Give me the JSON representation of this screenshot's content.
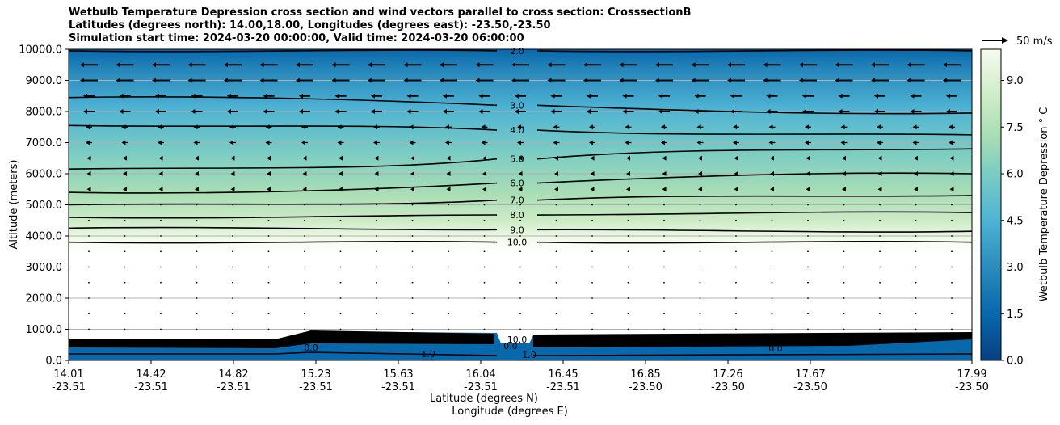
{
  "title_lines": [
    "Wetbulb Temperature Depression cross section and wind vectors parallel to cross section: CrosssectionB",
    "Latitudes (degrees north): 14.00,18.00, Longitudes (degrees east): -23.50,-23.50",
    "Simulation start time: 2024-03-20 00:00:00, Valid time: 2024-03-20 06:00:00"
  ],
  "chart_data": {
    "type": "contour",
    "title": "Wetbulb Temperature Depression cross section and wind vectors parallel to cross section: CrosssectionB",
    "ylabel": "Altitude (meters)",
    "xlabel_lines": [
      "Latitude (degrees N)",
      "Longitude (degrees E)"
    ],
    "ylim": [
      0,
      10000
    ],
    "y_ticks": [
      "0.0",
      "1000.0",
      "2000.0",
      "3000.0",
      "4000.0",
      "5000.0",
      "6000.0",
      "7000.0",
      "8000.0",
      "9000.0",
      "10000.0"
    ],
    "x_ticks": [
      {
        "lat": "14.01",
        "lon": "-23.51"
      },
      {
        "lat": "14.42",
        "lon": "-23.51"
      },
      {
        "lat": "14.82",
        "lon": "-23.51"
      },
      {
        "lat": "15.23",
        "lon": "-23.51"
      },
      {
        "lat": "15.63",
        "lon": "-23.51"
      },
      {
        "lat": "16.04",
        "lon": "-23.51"
      },
      {
        "lat": "16.45",
        "lon": "-23.51"
      },
      {
        "lat": "16.85",
        "lon": "-23.50"
      },
      {
        "lat": "17.26",
        "lon": "-23.50"
      },
      {
        "lat": "17.67",
        "lon": "-23.50"
      },
      {
        "lat": "17.99",
        "lon": "-23.50"
      }
    ],
    "grid_horizontal": true,
    "colorbar": {
      "label": "Wetbulb Temperature Depression ° C",
      "ticks": [
        "0.0",
        "1.5",
        "3.0",
        "4.5",
        "6.0",
        "7.5",
        "9.0"
      ],
      "range": [
        0,
        10
      ],
      "colors": [
        "#084081",
        "#0868ac",
        "#2b8cbe",
        "#4eb3d3",
        "#7bccc4",
        "#a8ddb5",
        "#ccebc5",
        "#e0f3db",
        "#f7fcf0"
      ]
    },
    "contours": [
      {
        "level": "2.0",
        "altitude_m": [
          9950,
          9950
        ]
      },
      {
        "level": "3.0",
        "altitude_m": [
          8450,
          7950
        ]
      },
      {
        "level": "4.0",
        "altitude_m": [
          7550,
          7250
        ]
      },
      {
        "level": "5.0",
        "altitude_m": [
          6150,
          6800
        ]
      },
      {
        "level": "6.0",
        "altitude_m": [
          5400,
          6000
        ]
      },
      {
        "level": "7.0",
        "altitude_m": [
          5000,
          5300
        ]
      },
      {
        "level": "8.0",
        "altitude_m": [
          4600,
          4750
        ]
      },
      {
        "level": "9.0",
        "altitude_m": [
          4250,
          4150
        ]
      },
      {
        "level": "10.0",
        "altitude_m": [
          3800,
          3800
        ]
      }
    ],
    "surface_labels": [
      "10.0",
      "1.0",
      "0.0",
      "0.0",
      "1.0",
      "0.0"
    ],
    "wind_reference": {
      "value": 50,
      "unit": "m/s",
      "label": "50 m/s"
    }
  }
}
